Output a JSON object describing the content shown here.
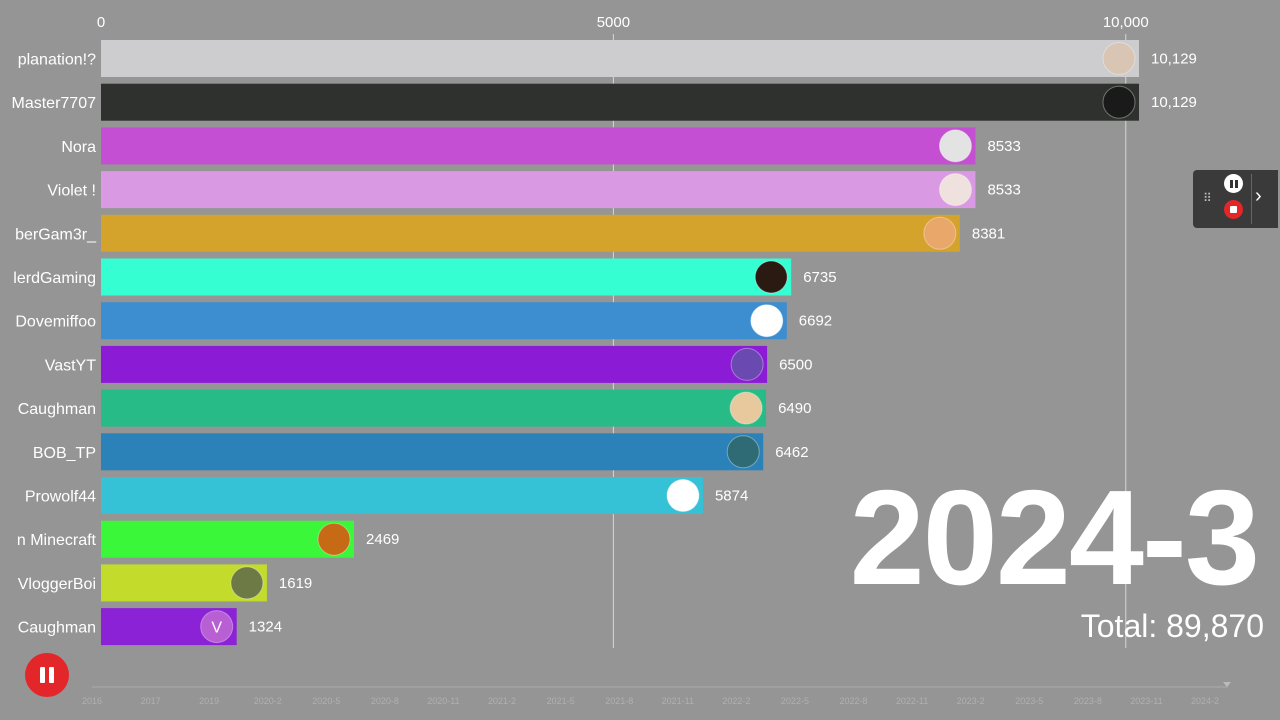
{
  "chart_data": {
    "type": "bar",
    "orientation": "horizontal",
    "categories": [
      "planation!?",
      "Master7707",
      "Nora",
      "Violet !",
      "berGam3r_",
      "lerdGaming",
      "Dovemiffoo",
      "VastYT",
      "Caughman",
      "BOB_TP",
      "Prowolf44",
      "n Minecraft",
      "VloggerBoi",
      "Caughman"
    ],
    "values": [
      10129,
      10129,
      8533,
      8533,
      8381,
      6735,
      6692,
      6500,
      6490,
      6462,
      5874,
      2469,
      1619,
      1324
    ],
    "value_labels": [
      "10,129",
      "10,129",
      "8533",
      "8533",
      "8381",
      "6735",
      "6692",
      "6500",
      "6490",
      "6462",
      "5874",
      "2469",
      "1619",
      "1324"
    ],
    "colors": [
      "#cdcdd0",
      "#2e312d",
      "#c44fd2",
      "#d999e3",
      "#d3a32c",
      "#36fed3",
      "#3c8ed0",
      "#8c1bd6",
      "#27bc87",
      "#2a82b9",
      "#35c1d6",
      "#3af73a",
      "#c3dc2c",
      "#8c22d6"
    ],
    "avatar_colors": [
      "#d9c5b4",
      "#1a1a1a",
      "#e3e3e3",
      "#efe2de",
      "#e9a76a",
      "#2a1a12",
      "#ffffff",
      "#6a4ab0",
      "#e7c99d",
      "#2e6b74",
      "#ffffff",
      "#c76a16",
      "#6d7a46",
      "#b85fd4"
    ],
    "avatar_letters": [
      "",
      "",
      "",
      "",
      "",
      "",
      "",
      "",
      "",
      "",
      "",
      "",
      "",
      "V"
    ],
    "x_ticks": [
      0,
      5000,
      10000
    ],
    "x_tick_labels": [
      "0",
      "5000",
      "10,000"
    ],
    "xlim": [
      0,
      10129
    ],
    "grid": true,
    "period": "2024-3",
    "total_label": "Total: 89,870",
    "timeline_labels": [
      "2016",
      "2017",
      "2019",
      "2020-2",
      "2020-5",
      "2020-8",
      "2020-11",
      "2021-2",
      "2021-5",
      "2021-8",
      "2021-11",
      "2022-2",
      "2022-5",
      "2022-8",
      "2022-11",
      "2023-2",
      "2023-5",
      "2023-8",
      "2023-11",
      "2024-2"
    ]
  },
  "controls": {
    "play_icon": "pause-icon",
    "recorder_pause_icon": "pause-icon",
    "recorder_stop_icon": "stop-icon",
    "recorder_expand_icon": "chevron-right-icon",
    "recorder_grip_icon": "drag-grip-icon",
    "expand_glyph": "›",
    "grip_glyph": "⠿"
  }
}
